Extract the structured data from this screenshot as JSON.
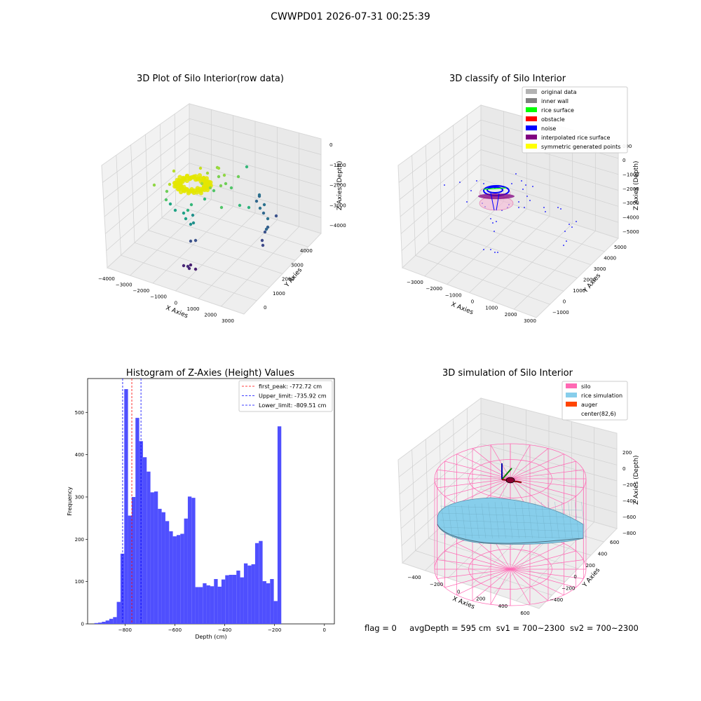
{
  "figure": {
    "title": "CWWPD01 2026-07-31 00:25:39"
  },
  "panels": {
    "raw": {
      "title": "3D Plot of Silo Interior(row data)",
      "xlabel": "X Axies",
      "ylabel": "Y Axies",
      "zlabel": "Z Axies (Depth)",
      "xticks": [
        "−4000",
        "−3000",
        "−2000",
        "−1000",
        "0",
        "1000",
        "2000",
        "3000"
      ],
      "yticks": [
        "0",
        "1000",
        "2000",
        "3000",
        "4000"
      ],
      "zticks": [
        "0",
        "−1000",
        "−2000",
        "−3000",
        "−4000"
      ]
    },
    "classify": {
      "title": "3D classify of Silo Interior",
      "xlabel": "X Axies",
      "ylabel": "Y Axies",
      "zlabel": "Z Axies (Depth)",
      "xticks": [
        "−3000",
        "−2000",
        "−1000",
        "0",
        "1000",
        "2000",
        "3000"
      ],
      "yticks": [
        "−1000",
        "0",
        "1000",
        "2000",
        "3000",
        "4000",
        "5000"
      ],
      "zticks": [
        "0",
        "−1000",
        "−2000",
        "−3000",
        "−4000",
        "−5000"
      ],
      "zticks_extra": "000",
      "legend": [
        {
          "label": "original data",
          "color": "#b3b3b3"
        },
        {
          "label": "inner wall",
          "color": "#808080"
        },
        {
          "label": "rice surface",
          "color": "#00ff00"
        },
        {
          "label": "obstacle",
          "color": "#ff0000"
        },
        {
          "label": "noise",
          "color": "#0000ff"
        },
        {
          "label": "interpolated rice surface",
          "color": "#800080"
        },
        {
          "label": "symmetric generated points",
          "color": "#ffff00"
        }
      ]
    },
    "simulation": {
      "title": "3D simulation of Silo Interior",
      "xlabel": "X Axies",
      "ylabel": "Y Axies",
      "zlabel": "Z Axies (Depth)",
      "xticks": [
        "−400",
        "−200",
        "0",
        "200",
        "400",
        "600"
      ],
      "yticks": [
        "−400",
        "−200",
        "0",
        "200",
        "400",
        "600"
      ],
      "zticks": [
        "200",
        "0",
        "−200",
        "−400",
        "−600",
        "−800"
      ],
      "legend": [
        {
          "label": "silo",
          "color": "#ff69b4"
        },
        {
          "label": "rice simulation",
          "color": "#87ceeb"
        },
        {
          "label": "auger",
          "color": "#ff4500"
        },
        {
          "label": "center(82,6)",
          "color": ""
        }
      ]
    }
  },
  "footer": {
    "flag": "flag = 0",
    "avg_depth": "avgDepth = 595 cm",
    "sv1": "sv1 = 700~2300",
    "sv2": "sv2 = 700~2300"
  },
  "chart_data": [
    {
      "type": "scatter",
      "title": "3D Plot of Silo Interior(row data)",
      "xlabel": "X Axies",
      "ylabel": "Y Axies",
      "zlabel": "Z Axies (Depth)",
      "xlim": [
        -4000,
        3500
      ],
      "ylim": [
        -500,
        4500
      ],
      "zlim": [
        -4500,
        0
      ]
    },
    {
      "type": "scatter",
      "title": "3D classify of Silo Interior",
      "xlabel": "X Axies",
      "ylabel": "Y Axies",
      "zlabel": "Z Axies (Depth)",
      "xlim": [
        -3500,
        3000
      ],
      "ylim": [
        -1500,
        5000
      ],
      "zlim": [
        -5500,
        0
      ],
      "series": [
        {
          "name": "original data"
        },
        {
          "name": "inner wall"
        },
        {
          "name": "rice surface"
        },
        {
          "name": "obstacle"
        },
        {
          "name": "noise"
        },
        {
          "name": "interpolated rice surface"
        },
        {
          "name": "symmetric generated points"
        }
      ]
    },
    {
      "type": "bar",
      "title": "Histogram of Z-Axies (Height) Values",
      "xlabel": "Depth (cm)",
      "ylabel": "Frequency",
      "xlim": [
        -950,
        40
      ],
      "ylim": [
        0,
        580
      ],
      "xticks": [
        -800,
        -600,
        -400,
        -200,
        0
      ],
      "yticks": [
        0,
        100,
        200,
        300,
        400,
        500
      ],
      "bin_width": 15,
      "bin_start": -923,
      "values": [
        2,
        3,
        5,
        8,
        12,
        16,
        52,
        166,
        555,
        256,
        300,
        487,
        432,
        394,
        360,
        311,
        313,
        272,
        264,
        243,
        219,
        207,
        210,
        213,
        249,
        301,
        298,
        87,
        87,
        96,
        91,
        89,
        106,
        88,
        105,
        115,
        116,
        116,
        126,
        110,
        143,
        138,
        141,
        191,
        196,
        101,
        96,
        106,
        54,
        467
      ],
      "vlines": [
        {
          "name": "first_peak: -772.72 cm",
          "x": -772.72,
          "color": "#ff0000"
        },
        {
          "name": "Upper_limit: -735.92 cm",
          "x": -735.92,
          "color": "#0000ff"
        },
        {
          "name": "Lower_limit: -809.51 cm",
          "x": -809.51,
          "color": "#0000ff"
        }
      ],
      "bar_color": "#4f4ffe"
    },
    {
      "type": "surface",
      "title": "3D simulation of Silo Interior",
      "xlabel": "X Axies",
      "ylabel": "Y Axies",
      "zlabel": "Z Axies (Depth)",
      "xlim": [
        -500,
        700
      ],
      "ylim": [
        -500,
        700
      ],
      "zlim": [
        -900,
        300
      ],
      "series": [
        {
          "name": "silo"
        },
        {
          "name": "rice simulation"
        },
        {
          "name": "auger"
        },
        {
          "name": "center(82,6)"
        }
      ]
    }
  ]
}
